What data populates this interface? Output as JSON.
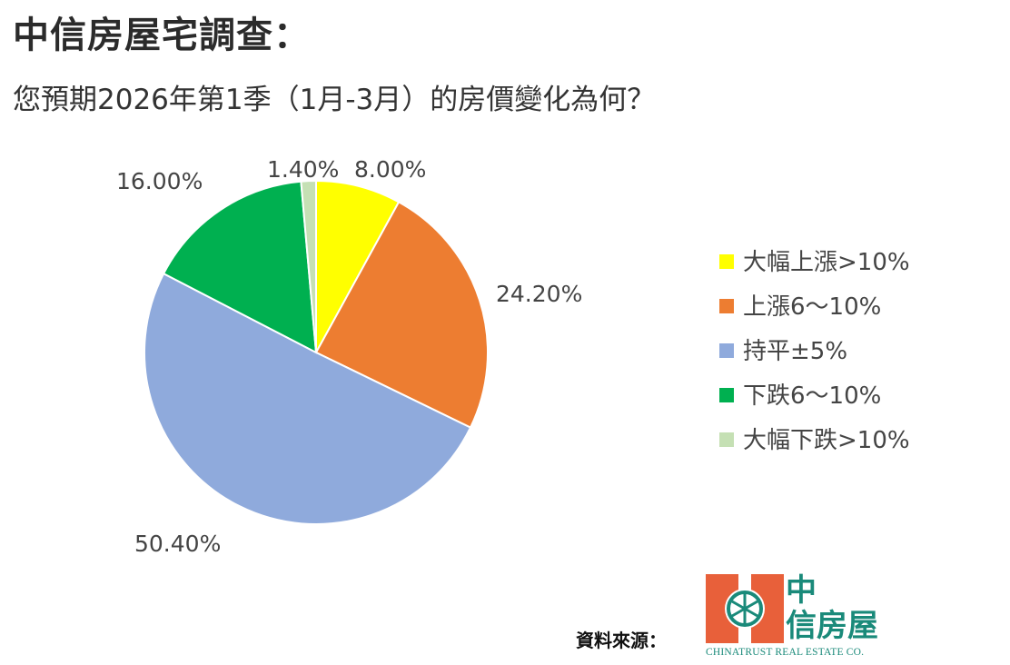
{
  "header": {
    "title": "中信房屋宅調查",
    "title_colon": "：",
    "subtitle": "您預期2026年第1季（1月-3月）的房價變化為何？"
  },
  "chart_data": {
    "type": "pie",
    "title": "",
    "slices": [
      {
        "label": "大幅上漲>10%",
        "value": 8.0,
        "display": "8.00%",
        "color": "#ffff00"
      },
      {
        "label": "上漲6～10%",
        "value": 24.2,
        "display": "24.20%",
        "color": "#ed7d31"
      },
      {
        "label": "持平±5%",
        "value": 50.4,
        "display": "50.40%",
        "color": "#8faadc"
      },
      {
        "label": "下跌6～10%",
        "value": 16.0,
        "display": "16.00%",
        "color": "#00b050"
      },
      {
        "label": "大幅下跌>10%",
        "value": 1.4,
        "display": "1.40%",
        "color": "#c5e0b4"
      }
    ],
    "start_angle_deg": 0,
    "direction": "clockwise",
    "legend": "right"
  },
  "footer": {
    "source_label": "資料來源：",
    "logo": {
      "name_top": "中",
      "name_bottom": "信房屋",
      "name_en": "CHINATRUST REAL ESTATE CO.",
      "mark_color": "#e8603a",
      "text_color": "#1a8a7a"
    }
  }
}
